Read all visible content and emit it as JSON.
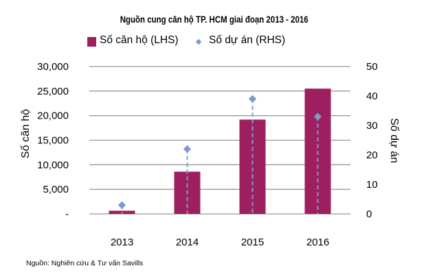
{
  "chart_data": {
    "type": "bar+scatter",
    "title": "Nguồn cung căn hộ TP. HCM giai đoạn 2013 - 2016",
    "categories": [
      "2013",
      "2014",
      "2015",
      "2016"
    ],
    "series": [
      {
        "name": "Số căn hộ (LHS)",
        "type": "bar",
        "axis": "left",
        "color": "#9E1F5E",
        "values": [
          650,
          8600,
          19200,
          25500
        ]
      },
      {
        "name": "Số dự án (RHS)",
        "type": "scatter",
        "axis": "right",
        "color": "#7B9BD1",
        "drop_lines": "dashed",
        "values": [
          3,
          22,
          39,
          33
        ]
      }
    ],
    "ylabel_left": "Số căn hộ",
    "ylabel_right": "Số dự án",
    "ylim_left": [
      0,
      30000
    ],
    "ylim_right": [
      0,
      50
    ],
    "yticks_left": [
      "-",
      "5,000",
      "10,000",
      "15,000",
      "20,000",
      "25,000",
      "30,000"
    ],
    "yticks_right": [
      "0",
      "10",
      "20",
      "30",
      "40",
      "50"
    ],
    "grid": true,
    "legend_position": "top"
  },
  "source": "Nguồn: Nghiên cứu & Tư vấn Savills"
}
